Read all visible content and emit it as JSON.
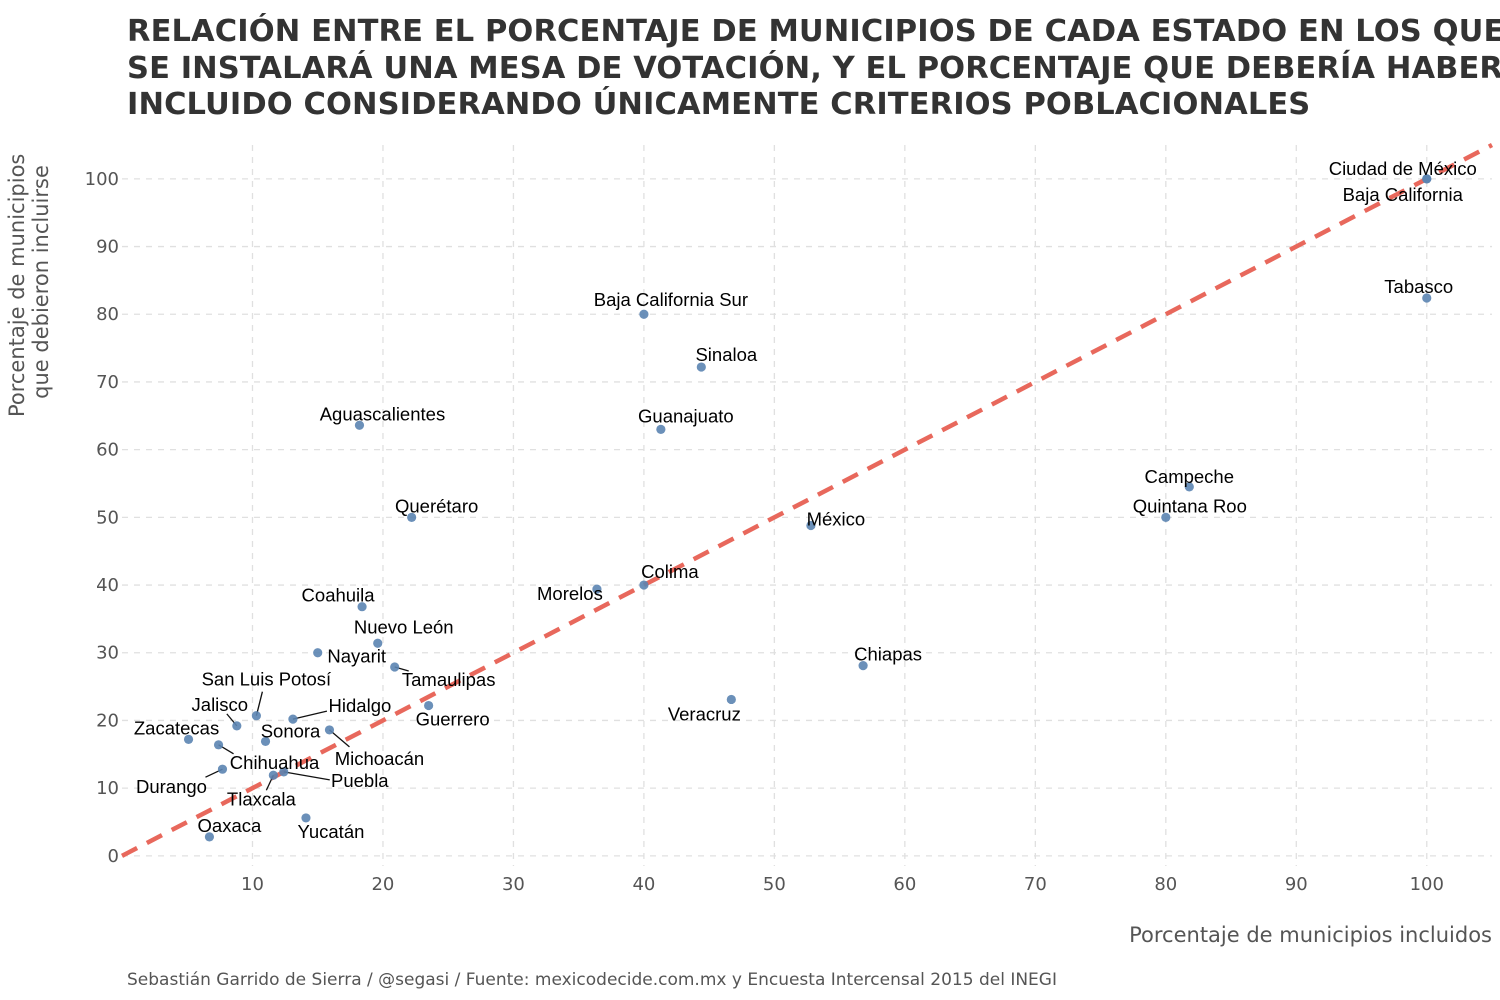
{
  "title_lines": [
    "RELACIÓN ENTRE EL PORCENTAJE DE MUNICIPIOS DE CADA ESTADO EN LOS QUE",
    "SE INSTALARÁ UNA MESA DE VOTACIÓN, Y EL PORCENTAJE QUE DEBERÍA HABERSE",
    "INCLUIDO CONSIDERANDO ÚNICAMENTE CRITERIOS POBLACIONALES"
  ],
  "caption": "Sebastián Garrido de Sierra / @segasi / Fuente: mexicodecide.com.mx y Encuesta Intercensal 2015 del INEGI",
  "chart_data": {
    "type": "scatter",
    "xlabel": "Porcentaje de municipios incluidos",
    "ylabel_lines": [
      "Porcentaje de municipios",
      "que debieron incluirse"
    ],
    "xlim": [
      0,
      105
    ],
    "ylim": [
      -1.5,
      105
    ],
    "x_ticks": [
      10,
      20,
      30,
      40,
      50,
      60,
      70,
      80,
      90,
      100
    ],
    "y_ticks": [
      0,
      10,
      20,
      30,
      40,
      50,
      60,
      70,
      80,
      90,
      100
    ],
    "grid": true,
    "reference_line": {
      "type": "identity",
      "style": "dashed",
      "color": "#e8685c"
    },
    "point_color": "#5b84b1",
    "points": [
      {
        "name": "Ciudad de México",
        "x": 100,
        "y": 100
      },
      {
        "name": "Baja California",
        "x": 100,
        "y": 100
      },
      {
        "name": "Tabasco",
        "x": 100,
        "y": 82.4
      },
      {
        "name": "Baja California Sur",
        "x": 40,
        "y": 80
      },
      {
        "name": "Sinaloa",
        "x": 44.4,
        "y": 72.2
      },
      {
        "name": "Aguascalientes",
        "x": 18.2,
        "y": 63.6
      },
      {
        "name": "Guanajuato",
        "x": 41.3,
        "y": 63
      },
      {
        "name": "Campeche",
        "x": 81.8,
        "y": 54.5
      },
      {
        "name": "Querétaro",
        "x": 22.2,
        "y": 50
      },
      {
        "name": "Quintana Roo",
        "x": 80,
        "y": 50
      },
      {
        "name": "México",
        "x": 52.8,
        "y": 48.8
      },
      {
        "name": "Colima",
        "x": 40,
        "y": 40
      },
      {
        "name": "Morelos",
        "x": 36.4,
        "y": 39.4
      },
      {
        "name": "Coahuila",
        "x": 18.4,
        "y": 36.8
      },
      {
        "name": "Nuevo León",
        "x": 19.6,
        "y": 31.4
      },
      {
        "name": "Nayarit",
        "x": 15,
        "y": 30
      },
      {
        "name": "Tamaulipas",
        "x": 20.9,
        "y": 27.9
      },
      {
        "name": "Chiapas",
        "x": 56.8,
        "y": 28.1
      },
      {
        "name": "Veracruz",
        "x": 46.7,
        "y": 23.1
      },
      {
        "name": "Guerrero",
        "x": 23.5,
        "y": 22.2
      },
      {
        "name": "San Luis Potosí",
        "x": 10.3,
        "y": 20.7
      },
      {
        "name": "Hidalgo",
        "x": 13.1,
        "y": 20.2
      },
      {
        "name": "Jalisco",
        "x": 8.8,
        "y": 19.2
      },
      {
        "name": "Michoacán",
        "x": 15.9,
        "y": 18.6
      },
      {
        "name": "Zacatecas",
        "x": 5.1,
        "y": 17.2
      },
      {
        "name": "Sonora",
        "x": 11,
        "y": 16.9
      },
      {
        "name": "Chihuahua",
        "x": 7.4,
        "y": 16.4
      },
      {
        "name": "Durango",
        "x": 7.7,
        "y": 12.8
      },
      {
        "name": "Puebla",
        "x": 12.4,
        "y": 12.4
      },
      {
        "name": "Tlaxcala",
        "x": 11.6,
        "y": 11.9
      },
      {
        "name": "Yucatán",
        "x": 14.1,
        "y": 5.6
      },
      {
        "name": "Oaxaca",
        "x": 6.7,
        "y": 2.8
      }
    ]
  }
}
